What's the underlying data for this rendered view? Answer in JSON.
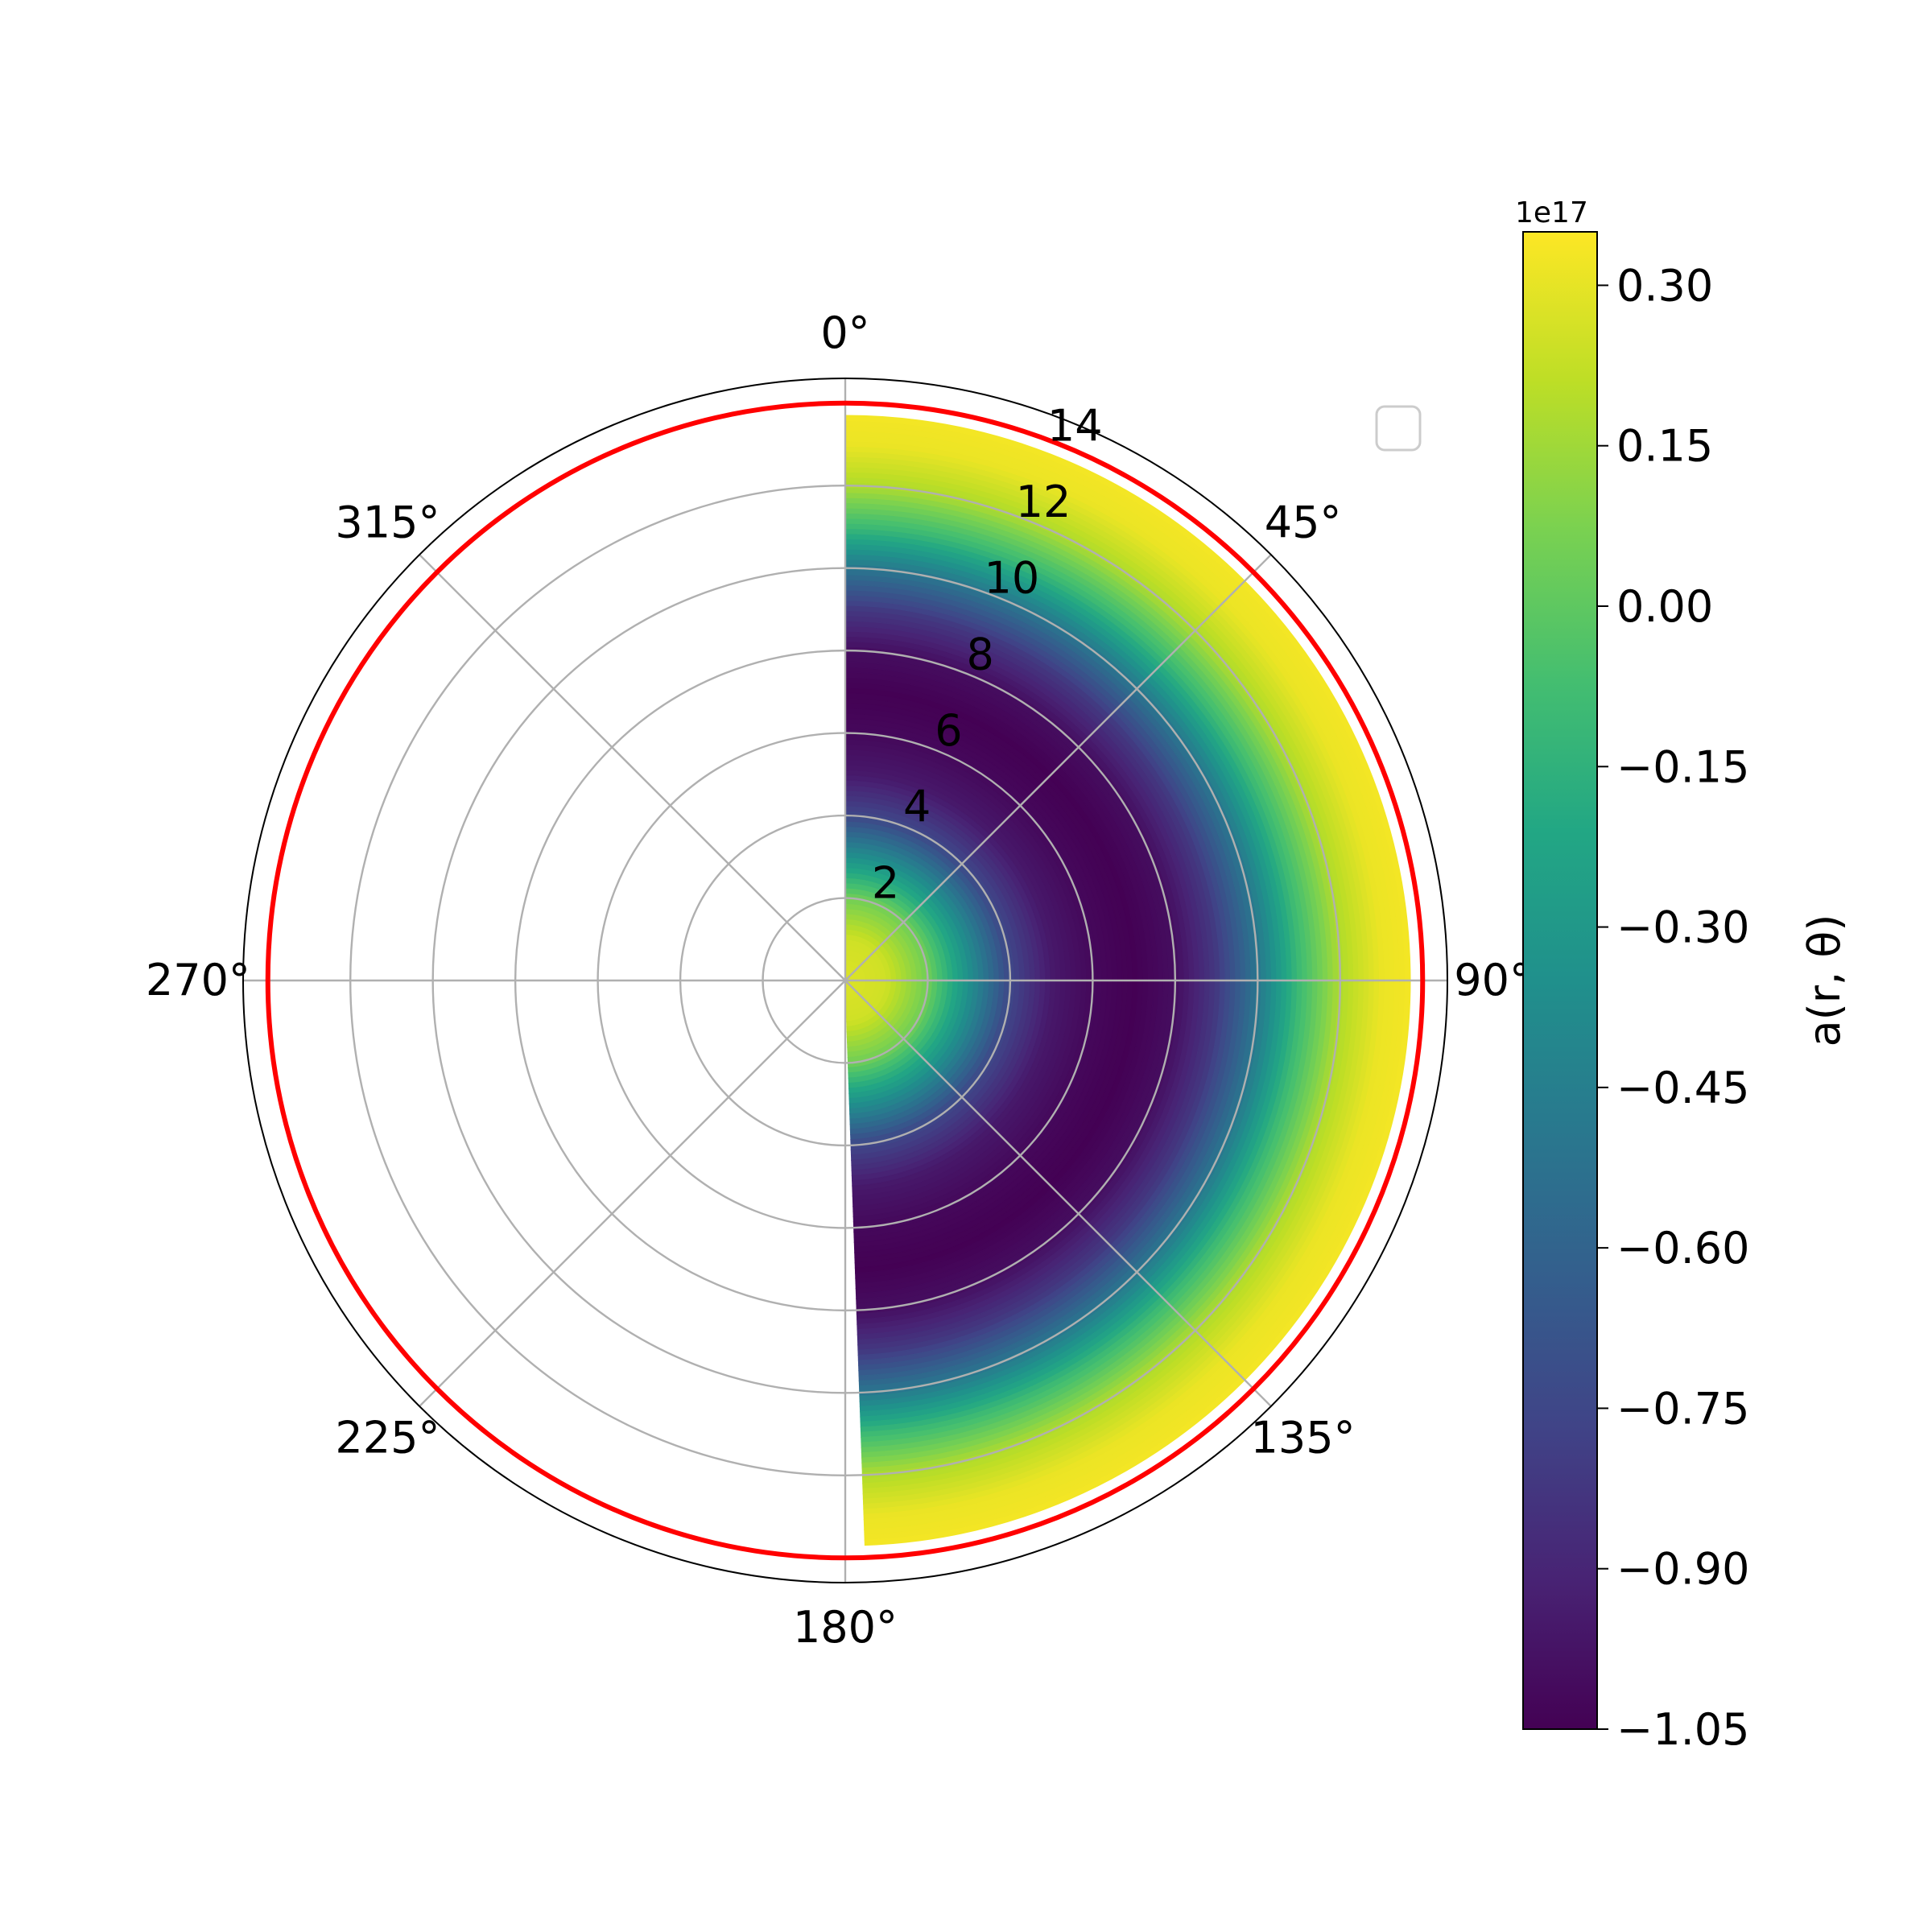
{
  "chart_data": {
    "type": "heatmap",
    "projection": "polar",
    "theta_zero_location": "top",
    "theta_direction": "clockwise",
    "theta_tick_labels": [
      "0°",
      "45°",
      "90°",
      "135°",
      "180°",
      "225°",
      "270°",
      "315°"
    ],
    "theta_ticks_deg": [
      0,
      45,
      90,
      135,
      180,
      225,
      270,
      315
    ],
    "r_tick_labels": [
      "2",
      "4",
      "6",
      "8",
      "10",
      "12",
      "14"
    ],
    "r_ticks": [
      2,
      4,
      6,
      8,
      10,
      12,
      14
    ],
    "r_range": [
      0,
      14.6
    ],
    "field_theta_range_deg": [
      0,
      178
    ],
    "field_r_range": [
      0,
      13.7
    ],
    "field_profile": {
      "r": [
        0,
        1,
        2,
        3,
        4,
        5,
        6,
        7,
        8,
        9,
        10,
        11,
        12,
        13,
        13.7
      ],
      "value": [
        0.28,
        0.25,
        0.05,
        -0.35,
        -0.75,
        -0.95,
        -1.02,
        -1.05,
        -1.0,
        -0.82,
        -0.5,
        -0.1,
        0.18,
        0.31,
        0.33
      ]
    },
    "boundary_circle": {
      "r": 14,
      "color": "#ff0000"
    },
    "grid": true,
    "legend": {
      "placement": "upper-right",
      "entries": []
    },
    "colorbar": {
      "colormap": "viridis",
      "label": "a(r, θ)",
      "offset_text": "1e17",
      "range": [
        -1.05,
        0.35
      ],
      "tick_values": [
        0.3,
        0.15,
        0.0,
        -0.15,
        -0.3,
        -0.45,
        -0.6,
        -0.75,
        -0.9,
        -1.05
      ],
      "tick_labels": [
        "0.30",
        "0.15",
        "0.00",
        "−0.15",
        "−0.30",
        "−0.45",
        "−0.60",
        "−0.75",
        "−0.90",
        "−1.05"
      ]
    }
  }
}
